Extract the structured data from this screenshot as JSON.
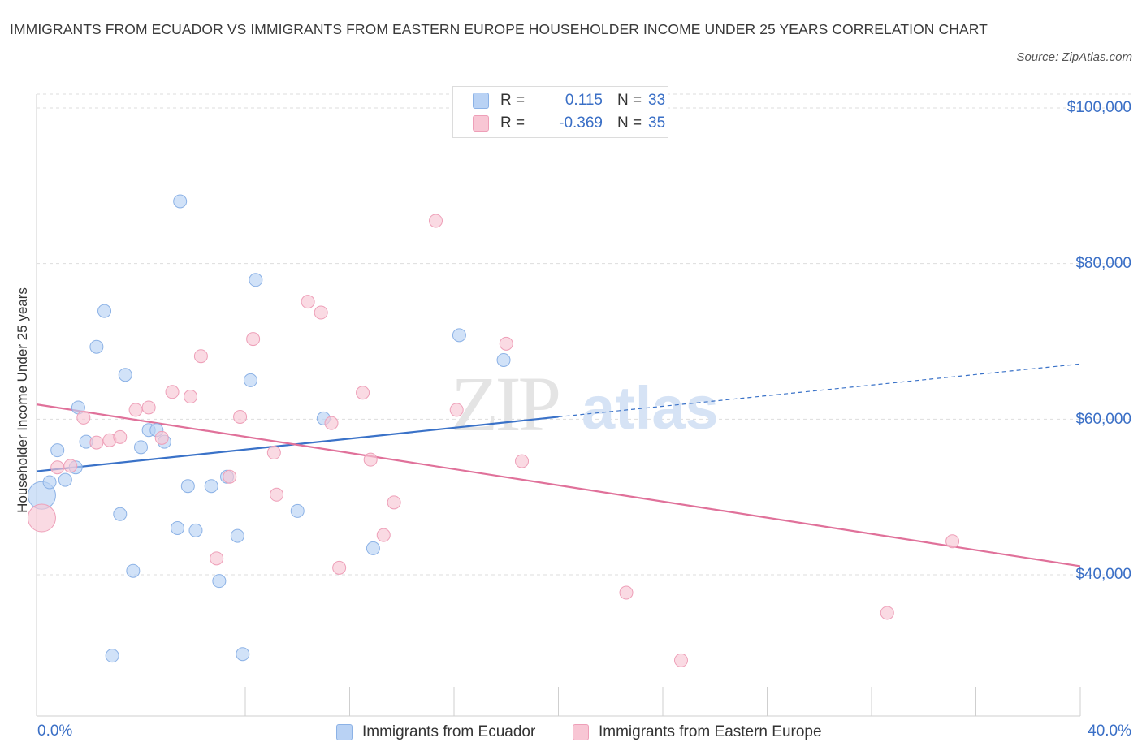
{
  "title": "IMMIGRANTS FROM ECUADOR VS IMMIGRANTS FROM EASTERN EUROPE HOUSEHOLDER INCOME UNDER 25 YEARS CORRELATION CHART",
  "source": "Source: ZipAtlas.com",
  "watermark": {
    "zip": "ZIP",
    "atlas": "atlas"
  },
  "legend": {
    "r_label": "R =",
    "n_label": "N =",
    "series": [
      {
        "r": "0.115",
        "n": "33"
      },
      {
        "r": "-0.369",
        "n": "35"
      }
    ]
  },
  "colors": {
    "blue_fill": "#b9d2f4",
    "blue_stroke": "#8cb2e6",
    "blue_line": "#3a72c8",
    "pink_fill": "#f8c6d4",
    "pink_stroke": "#ee9fb8",
    "pink_line": "#e0719a",
    "grid": "#dddddd",
    "axis_text": "#3a6fc6"
  },
  "chart_data": {
    "type": "scatter",
    "title": "IMMIGRANTS FROM ECUADOR VS IMMIGRANTS FROM EASTERN EUROPE HOUSEHOLDER INCOME UNDER 25 YEARS CORRELATION CHART",
    "xlabel": "",
    "ylabel": "Householder Income Under 25 years",
    "xlim": [
      0,
      40
    ],
    "ylim": [
      20000,
      102000
    ],
    "x_tick_labels": [
      "0.0%",
      "40.0%"
    ],
    "y_ticks": [
      40000,
      60000,
      80000,
      100000
    ],
    "y_tick_labels": [
      "$40,000",
      "$60,000",
      "$80,000",
      "$100,000"
    ],
    "grid": true,
    "legend_position": "bottom",
    "series": [
      {
        "name": "Immigrants from Ecuador",
        "color": "#b9d2f4",
        "points": [
          {
            "x": 0.2,
            "y": 50200,
            "big": true
          },
          {
            "x": 0.5,
            "y": 51900
          },
          {
            "x": 0.8,
            "y": 56000
          },
          {
            "x": 1.1,
            "y": 52200
          },
          {
            "x": 1.5,
            "y": 53800
          },
          {
            "x": 1.6,
            "y": 61500
          },
          {
            "x": 1.9,
            "y": 57100
          },
          {
            "x": 2.3,
            "y": 69300
          },
          {
            "x": 2.6,
            "y": 73900
          },
          {
            "x": 2.9,
            "y": 29600
          },
          {
            "x": 3.2,
            "y": 47800
          },
          {
            "x": 3.4,
            "y": 65700
          },
          {
            "x": 3.7,
            "y": 40500
          },
          {
            "x": 4.0,
            "y": 56400
          },
          {
            "x": 4.3,
            "y": 58600
          },
          {
            "x": 4.6,
            "y": 58600
          },
          {
            "x": 4.9,
            "y": 57100
          },
          {
            "x": 5.4,
            "y": 46000
          },
          {
            "x": 5.5,
            "y": 88000
          },
          {
            "x": 5.8,
            "y": 51400
          },
          {
            "x": 6.1,
            "y": 45700
          },
          {
            "x": 6.7,
            "y": 51400
          },
          {
            "x": 7.0,
            "y": 39200
          },
          {
            "x": 7.3,
            "y": 52600
          },
          {
            "x": 7.7,
            "y": 45000
          },
          {
            "x": 7.9,
            "y": 29800
          },
          {
            "x": 8.2,
            "y": 65000
          },
          {
            "x": 8.4,
            "y": 77900
          },
          {
            "x": 10.0,
            "y": 48200
          },
          {
            "x": 11.0,
            "y": 60100
          },
          {
            "x": 12.9,
            "y": 43400
          },
          {
            "x": 16.2,
            "y": 70800
          },
          {
            "x": 17.9,
            "y": 67600
          }
        ],
        "trend": {
          "x": [
            0,
            20
          ],
          "y": [
            53300,
            60300
          ],
          "dashed_to": {
            "x": 40,
            "y": 67100
          }
        }
      },
      {
        "name": "Immigrants from Eastern Europe",
        "color": "#f8c6d4",
        "points": [
          {
            "x": 0.2,
            "y": 47300,
            "big": true
          },
          {
            "x": 0.8,
            "y": 53800
          },
          {
            "x": 1.3,
            "y": 54000
          },
          {
            "x": 1.8,
            "y": 60200
          },
          {
            "x": 2.3,
            "y": 57000
          },
          {
            "x": 2.8,
            "y": 57300
          },
          {
            "x": 3.2,
            "y": 57700
          },
          {
            "x": 3.8,
            "y": 61200
          },
          {
            "x": 4.3,
            "y": 61500
          },
          {
            "x": 4.8,
            "y": 57600
          },
          {
            "x": 5.2,
            "y": 63500
          },
          {
            "x": 5.9,
            "y": 62900
          },
          {
            "x": 6.3,
            "y": 68100
          },
          {
            "x": 6.9,
            "y": 42100
          },
          {
            "x": 7.4,
            "y": 52600
          },
          {
            "x": 7.8,
            "y": 60300
          },
          {
            "x": 8.3,
            "y": 70300
          },
          {
            "x": 9.1,
            "y": 55700
          },
          {
            "x": 9.2,
            "y": 50300
          },
          {
            "x": 10.4,
            "y": 75100
          },
          {
            "x": 10.9,
            "y": 73700
          },
          {
            "x": 11.3,
            "y": 59500
          },
          {
            "x": 11.6,
            "y": 40900
          },
          {
            "x": 12.5,
            "y": 63400
          },
          {
            "x": 12.8,
            "y": 54800
          },
          {
            "x": 13.3,
            "y": 45100
          },
          {
            "x": 13.7,
            "y": 49300
          },
          {
            "x": 15.3,
            "y": 85500
          },
          {
            "x": 16.1,
            "y": 61200
          },
          {
            "x": 18.0,
            "y": 69700
          },
          {
            "x": 18.6,
            "y": 54600
          },
          {
            "x": 22.6,
            "y": 37700
          },
          {
            "x": 24.7,
            "y": 29000
          },
          {
            "x": 32.6,
            "y": 35100
          },
          {
            "x": 35.1,
            "y": 44300
          }
        ],
        "trend": {
          "x": [
            0,
            40
          ],
          "y": [
            61900,
            41100
          ]
        }
      }
    ]
  }
}
